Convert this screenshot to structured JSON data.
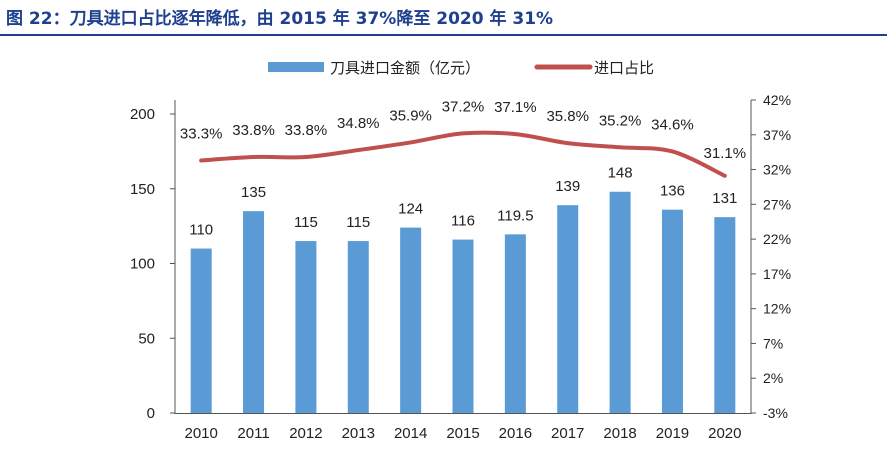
{
  "figure": {
    "title": "图 22：刀具进口占比逐年降低，由 2015 年 37%降至 2020 年 31%"
  },
  "chart_data": {
    "type": "bar+line",
    "categories": [
      "2010",
      "2011",
      "2012",
      "2013",
      "2014",
      "2015",
      "2016",
      "2017",
      "2018",
      "2019",
      "2020"
    ],
    "series": [
      {
        "name": "刀具进口金额（亿元）",
        "type": "bar",
        "axis": "left",
        "color": "#5b9bd5",
        "values": [
          110,
          135,
          115,
          115,
          124,
          116,
          119.5,
          139,
          148,
          136,
          131
        ],
        "labels": [
          "110",
          "135",
          "115",
          "115",
          "124",
          "116",
          "119.5",
          "139",
          "148",
          "136",
          "131"
        ]
      },
      {
        "name": "进口占比",
        "type": "line",
        "axis": "right",
        "color": "#c0504d",
        "values": [
          33.3,
          33.8,
          33.8,
          34.8,
          35.9,
          37.2,
          37.1,
          35.8,
          35.2,
          34.6,
          31.1
        ],
        "labels": [
          "33.3%",
          "33.8%",
          "33.8%",
          "34.8%",
          "35.9%",
          "37.2%",
          "37.1%",
          "35.8%",
          "35.2%",
          "34.6%",
          "31.1%"
        ]
      }
    ],
    "left_axis": {
      "min": 0,
      "max": 200,
      "ticks": [
        "0",
        "50",
        "100",
        "150",
        "200"
      ],
      "tick_values": [
        0,
        50,
        100,
        150,
        200
      ]
    },
    "right_axis": {
      "min": -3,
      "max": 42,
      "ticks": [
        "-3%",
        "2%",
        "7%",
        "12%",
        "17%",
        "22%",
        "27%",
        "32%",
        "37%",
        "42%"
      ],
      "tick_values": [
        -3,
        2,
        7,
        12,
        17,
        22,
        27,
        32,
        37,
        42
      ]
    },
    "legend": {
      "position": "top-center"
    },
    "grid": false
  }
}
